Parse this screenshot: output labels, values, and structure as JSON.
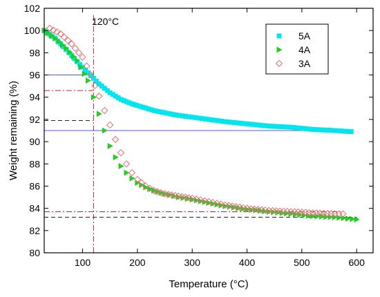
{
  "chart_data": {
    "type": "scatter",
    "title": "",
    "xlabel": "Temperature (°C)",
    "ylabel": "Weight remaining (%)",
    "xlim": [
      30,
      630
    ],
    "ylim": [
      80,
      102
    ],
    "x_ticks": [
      100,
      200,
      300,
      400,
      500,
      600
    ],
    "y_ticks": [
      80,
      82,
      84,
      86,
      88,
      90,
      92,
      94,
      96,
      98,
      100,
      102
    ],
    "grid": false,
    "legend_position": "top-right",
    "series": [
      {
        "name": "5A",
        "marker": "square",
        "color": "#00e5ee",
        "x": [
          30,
          50,
          70,
          90,
          110,
          130,
          150,
          170,
          190,
          210,
          230,
          250,
          270,
          300,
          330,
          360,
          400,
          440,
          480,
          520,
          560,
          590
        ],
        "y": [
          100.0,
          99.3,
          98.3,
          97.2,
          96.2,
          95.2,
          94.4,
          93.8,
          93.4,
          93.1,
          92.8,
          92.6,
          92.4,
          92.2,
          92.0,
          91.8,
          91.6,
          91.4,
          91.3,
          91.1,
          91.0,
          90.9
        ]
      },
      {
        "name": "4A",
        "marker": "triangle-right",
        "color": "#22cc22",
        "x": [
          30,
          50,
          70,
          90,
          110,
          120,
          130,
          140,
          150,
          160,
          170,
          180,
          190,
          200,
          215,
          230,
          250,
          275,
          300,
          330,
          360,
          400,
          440,
          480,
          520,
          560,
          600
        ],
        "y": [
          100.0,
          99.3,
          98.4,
          97.3,
          95.5,
          94.0,
          92.5,
          91.0,
          89.6,
          88.6,
          87.8,
          87.2,
          86.7,
          86.3,
          85.9,
          85.6,
          85.3,
          85.0,
          84.8,
          84.5,
          84.2,
          83.9,
          83.7,
          83.5,
          83.3,
          83.2,
          83.0
        ]
      },
      {
        "name": "3A",
        "marker": "diamond-open",
        "color": "#e07070",
        "x": [
          40,
          60,
          80,
          100,
          115,
          130,
          140,
          150,
          160,
          170,
          180,
          190,
          200,
          215,
          230,
          250,
          275,
          300,
          330,
          360,
          400,
          440,
          480,
          520,
          560,
          575
        ],
        "y": [
          100.2,
          99.7,
          98.8,
          97.6,
          96.0,
          94.1,
          92.8,
          91.5,
          90.2,
          89.0,
          88.0,
          87.2,
          86.6,
          86.0,
          85.6,
          85.3,
          85.1,
          84.9,
          84.6,
          84.3,
          84.0,
          83.8,
          83.7,
          83.6,
          83.5,
          83.5
        ]
      }
    ],
    "reference_lines": {
      "vertical_x": 120,
      "vertical_label": "120°C",
      "h_5a_upper": 96.0,
      "h_5a_lower": 91.0,
      "h_3a_upper": 94.6,
      "h_3a_lower": 83.7,
      "h_4a_upper": 91.9,
      "h_4a_lower": 83.2
    }
  },
  "colors": {
    "axis": "#000000",
    "blue_line": "#5555dd",
    "red_dashdot": "#cc2222",
    "black_dash": "#222222"
  }
}
